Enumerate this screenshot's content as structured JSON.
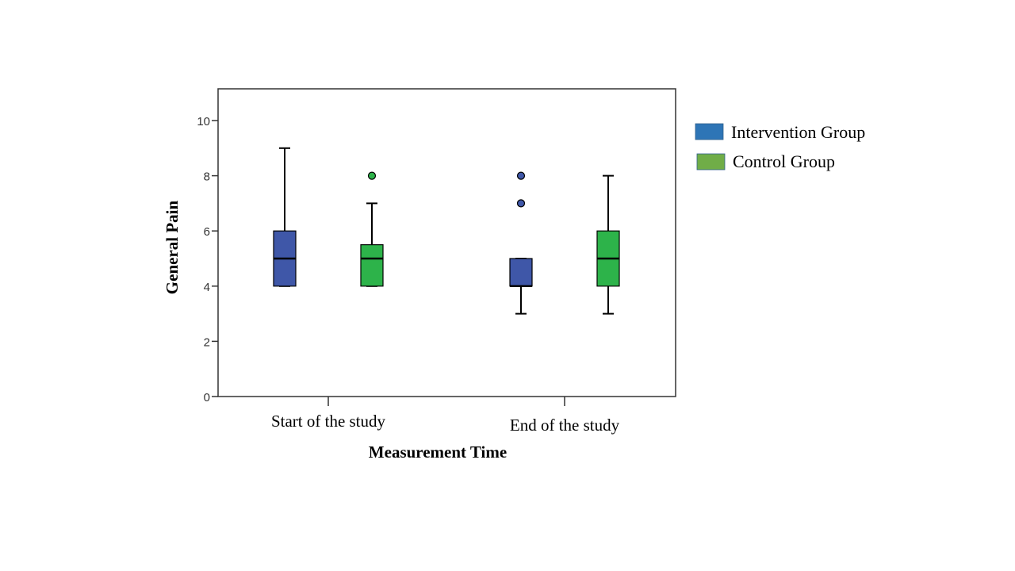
{
  "chart_data": {
    "type": "boxplot",
    "xlabel": "Measurement Time",
    "ylabel": "General Pain",
    "ylim": [
      0,
      11
    ],
    "yticks": [
      0,
      2,
      4,
      6,
      8,
      10
    ],
    "categories": [
      "Start of the study",
      "End of the study"
    ],
    "grid": false,
    "legend_position": "right",
    "series": [
      {
        "name": "Intervention Group",
        "color": "#3f57a8",
        "legend_color": "#2e75b6",
        "boxes": [
          {
            "min": 4,
            "q1": 4,
            "median": 5,
            "q3": 6,
            "max": 9,
            "outliers": []
          },
          {
            "min": 3,
            "q1": 4,
            "median": 4,
            "q3": 5,
            "max": 5,
            "outliers": [
              7,
              8
            ]
          }
        ]
      },
      {
        "name": "Control Group",
        "color": "#2db34a",
        "legend_color": "#70ad47",
        "boxes": [
          {
            "min": 4,
            "q1": 4,
            "median": 5,
            "q3": 5.5,
            "max": 7,
            "outliers": [
              8
            ]
          },
          {
            "min": 3,
            "q1": 4,
            "median": 5,
            "q3": 6,
            "max": 8,
            "outliers": []
          }
        ]
      }
    ]
  }
}
